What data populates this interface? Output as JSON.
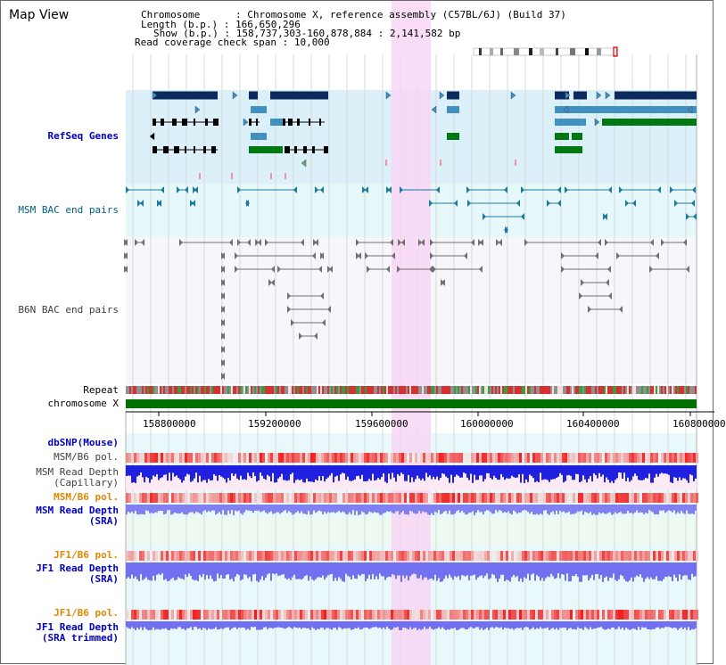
{
  "header": {
    "title": "Map View",
    "chromosome_key": "Chromosome",
    "chromosome_value": "Chromosome X, reference assembly (C57BL/6J) (Build 37)",
    "length_key": "Length (b.p.)",
    "length_value": "166,650,296",
    "show_key": "Show (b.p.)",
    "show_value": "158,737,303-160,878,884 : 2,141,582 bp",
    "coverage_key": "Read coverage check span",
    "coverage_value": "10,000"
  },
  "tracks": {
    "refseq": "RefSeq Genes",
    "msm_bac": "MSM BAC end pairs",
    "b6n_bac": "B6N BAC end pairs",
    "repeat": "Repeat",
    "chromosome": "chromosome X",
    "dbsnp": "dbSNP(Mouse)",
    "msm_b6_pol": "MSM/B6 pol.",
    "msm_read_depth_cap": "MSM Read Depth",
    "msm_read_depth_cap_sub": "(Capillary)",
    "msm_b6_pol_2": "MSM/B6 pol.",
    "msm_read_depth_sra": "MSM Read Depth",
    "msm_read_depth_sra_sub": "(SRA)",
    "jf1_b6_pol": "JF1/B6 pol.",
    "jf1_read_depth": "JF1 Read Depth",
    "jf1_read_depth_sub": "(SRA)",
    "jf1_b6_pol_2": "JF1/B6 pol.",
    "jf1_read_depth_trim": "JF1 Read Depth",
    "jf1_read_depth_trim_sub": "(SRA trimmed)"
  },
  "axis": {
    "ticks": [
      "158800000",
      "159200000",
      "159600000",
      "160000000",
      "160400000",
      "160800000"
    ]
  },
  "colors": {
    "refseq_bg": "#dcf0fa",
    "msm_bac_bg": "#e6f8fa",
    "highlight": "#f8d6f4",
    "label_blue": "#0000c0",
    "label_teal": "#006080",
    "label_gray": "#404040",
    "label_orange": "#e08800",
    "gene_dark": "#0a2a60",
    "gene_mid": "#4090c0",
    "gene_green": "#007a10",
    "chrom_green": "#007000"
  }
}
